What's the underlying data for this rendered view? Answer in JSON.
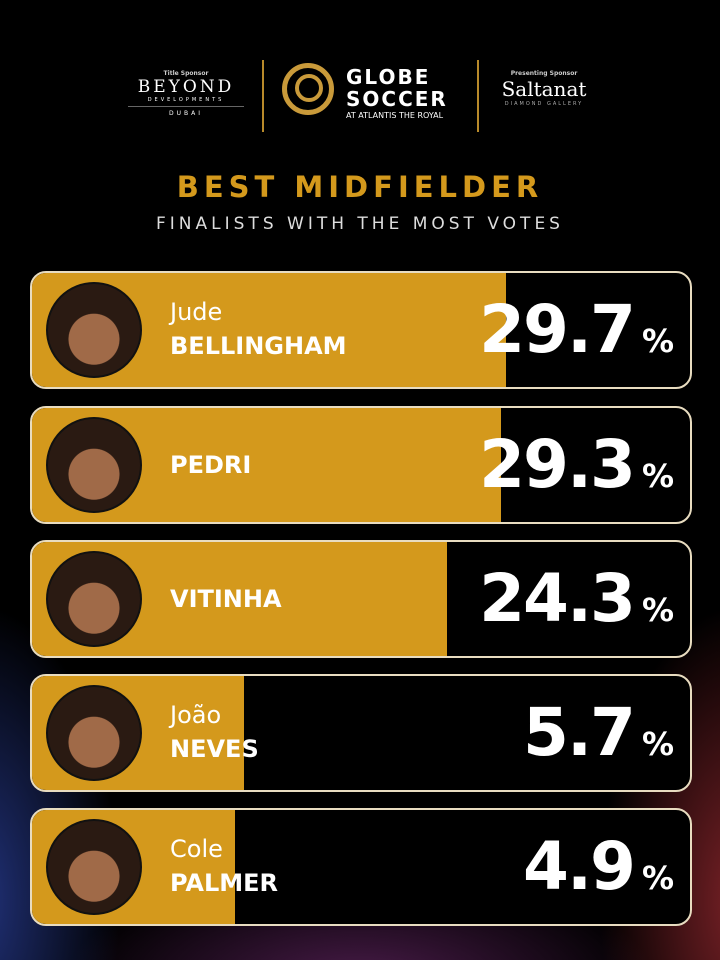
{
  "header": {
    "title_sponsor_label": "Title Sponsor",
    "title_sponsor": "BEYOND",
    "title_sponsor_sub": "DEVELOPMENTS",
    "title_sponsor_city": "DUBAI",
    "brand_line1": "GLOBE",
    "brand_line2": "SOCCER",
    "brand_sub": "AT ATLANTIS THE ROYAL",
    "presenting_label": "Presenting Sponsor",
    "presenting_sponsor": "Saltanat",
    "presenting_sub": "DIAMOND GALLERY"
  },
  "colors": {
    "accent": "#d4991c",
    "background": "#000000"
  },
  "chart_data": {
    "type": "bar",
    "title": "BEST MIDFIELDER",
    "subtitle": "FINALISTS WITH THE MOST VOTES",
    "unit": "%",
    "categories": [
      "Jude Bellingham",
      "Pedri",
      "Vitinha",
      "João Neves",
      "Cole Palmer"
    ],
    "values": [
      29.7,
      29.3,
      24.3,
      5.7,
      4.9
    ],
    "rows": [
      {
        "first": "Jude",
        "last": "BELLINGHAM",
        "value": "29.7",
        "v": 29.7
      },
      {
        "first": "",
        "last": "PEDRI",
        "value": "29.3",
        "v": 29.3
      },
      {
        "first": "",
        "last": "VITINHA",
        "value": "24.3",
        "v": 24.3
      },
      {
        "first": "João",
        "last": "NEVES",
        "value": "5.7",
        "v": 5.7
      },
      {
        "first": "Cole",
        "last": "PALMER",
        "value": "4.9",
        "v": 4.9
      }
    ]
  }
}
